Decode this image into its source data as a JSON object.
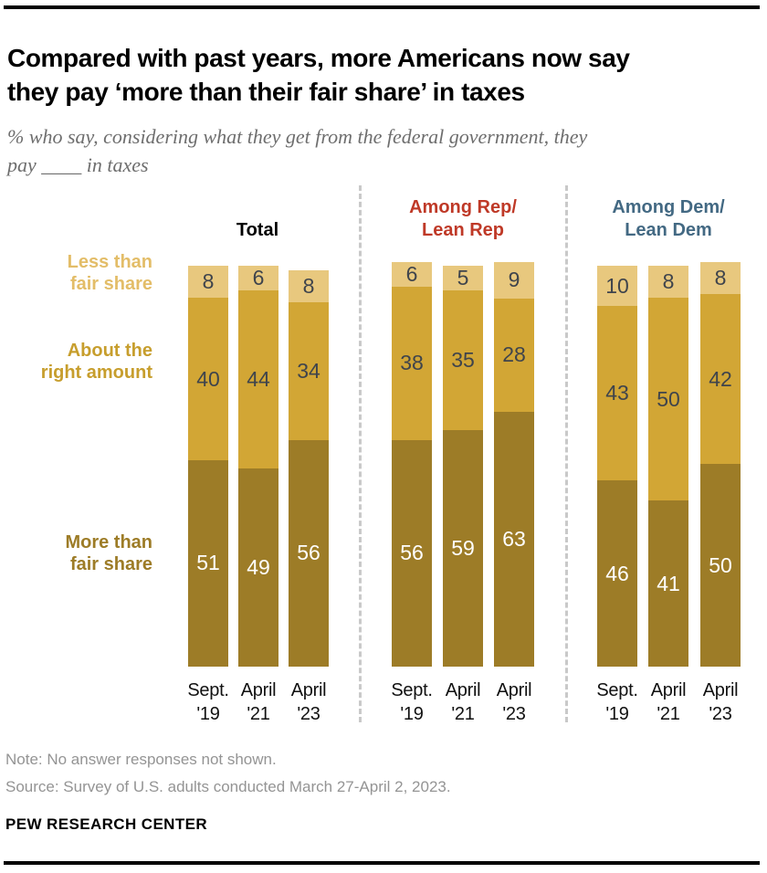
{
  "header": {
    "title_lines": [
      "Compared with past years, more Americans now say",
      "they pay ‘more than their fair share’ in taxes"
    ],
    "subtitle_lines": [
      "% who say, considering what they get from the federal government, they",
      "pay ____ in taxes"
    ]
  },
  "chart_data": {
    "type": "bar",
    "stacked": true,
    "unit": "%",
    "title": "Compared with past years, more Americans now say they pay ‘more than their fair share’ in taxes",
    "subtitle": "% who say, considering what they get from the federal government, they pay ____ in taxes",
    "x_tick_labels": [
      "Sept. '19",
      "April '21",
      "April '23"
    ],
    "ylim": [
      0,
      100
    ],
    "grid": false,
    "legend_position": "left",
    "value_text_dark": "#3f444c",
    "segments": [
      {
        "key": "less",
        "label_lines": [
          "Less than",
          "fair share"
        ],
        "label": "Less than fair share",
        "color": "#e8c87e",
        "label_color": "#e3bd68",
        "value_text_color": "#3f444c"
      },
      {
        "key": "about",
        "label_lines": [
          "About the",
          "right amount"
        ],
        "label": "About the right amount",
        "color": "#d2a635",
        "label_color": "#c79e2d",
        "value_text_color": "#3f444c"
      },
      {
        "key": "more",
        "label_lines": [
          "More than",
          "fair share"
        ],
        "label": "More than fair share",
        "color": "#9d7c27",
        "label_color": "#9d7c27",
        "value_text_color": "#ffffff"
      }
    ],
    "groups": [
      {
        "label_lines": [
          "Total"
        ],
        "label": "Total",
        "label_color": "#000000",
        "bars": [
          {
            "x_label_lines": [
              "Sept.",
              "'19"
            ],
            "less": 8,
            "about": 40,
            "more": 51
          },
          {
            "x_label_lines": [
              "April",
              "'21"
            ],
            "less": 6,
            "about": 44,
            "more": 49
          },
          {
            "x_label_lines": [
              "April",
              "'23"
            ],
            "less": 8,
            "about": 34,
            "more": 56
          }
        ]
      },
      {
        "label_lines": [
          "Among Rep/",
          "Lean Rep"
        ],
        "label": "Among Rep/Lean Rep",
        "label_color": "#bf3927",
        "bars": [
          {
            "x_label_lines": [
              "Sept.",
              "'19"
            ],
            "less": 6,
            "about": 38,
            "more": 56
          },
          {
            "x_label_lines": [
              "April",
              "'21"
            ],
            "less": 5,
            "about": 35,
            "more": 59
          },
          {
            "x_label_lines": [
              "April",
              "'23"
            ],
            "less": 9,
            "about": 28,
            "more": 63
          }
        ]
      },
      {
        "label_lines": [
          "Among Dem/",
          "Lean Dem"
        ],
        "label": "Among Dem/Lean Dem",
        "label_color": "#436983",
        "bars": [
          {
            "x_label_lines": [
              "Sept.",
              "'19"
            ],
            "less": 10,
            "about": 43,
            "more": 46
          },
          {
            "x_label_lines": [
              "April",
              "'21"
            ],
            "less": 8,
            "about": 50,
            "more": 41
          },
          {
            "x_label_lines": [
              "April",
              "'23"
            ],
            "less": 8,
            "about": 42,
            "more": 50
          }
        ]
      }
    ]
  },
  "footer": {
    "note": "Note: No answer responses not shown.",
    "source": "Source: Survey of U.S. adults conducted March 27-April 2, 2023.",
    "brand": "PEW RESEARCH CENTER"
  }
}
